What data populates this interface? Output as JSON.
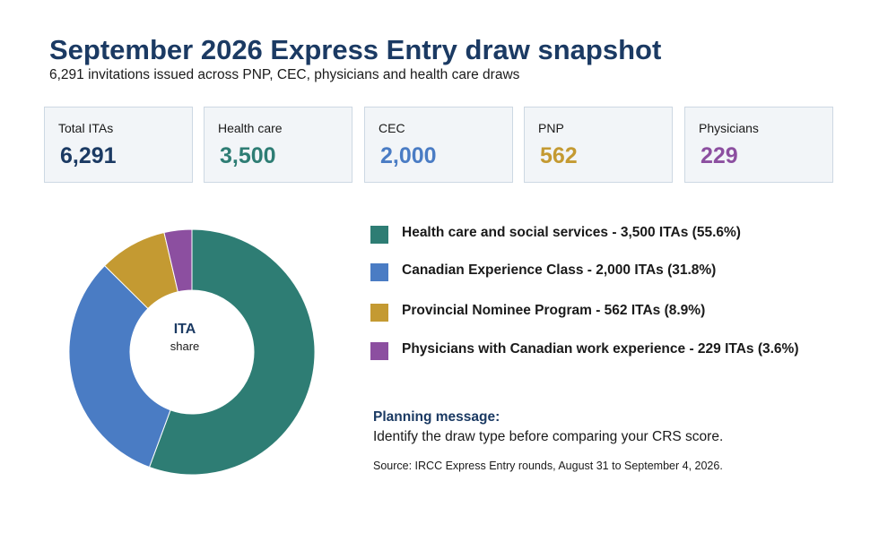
{
  "title": "September 2026 Express Entry draw snapshot",
  "subtitle": "6,291 invitations issued across PNP, CEC, physicians and health care draws",
  "cards": [
    {
      "label": "Total ITAs",
      "value": "6,291",
      "color": "#1b3a63"
    },
    {
      "label": "Health care",
      "value": "3,500",
      "color": "#2e7d74"
    },
    {
      "label": "CEC",
      "value": "2,000",
      "color": "#4a7cc4"
    },
    {
      "label": "PNP",
      "value": "562",
      "color": "#c49a32"
    },
    {
      "label": "Physicians",
      "value": "229",
      "color": "#8c4fa0"
    }
  ],
  "chart_data": {
    "type": "pie",
    "hole": true,
    "center_title": "ITA",
    "center_subtitle": "share",
    "legend_position": "right",
    "slices": [
      {
        "label": "Health care and social services - 3,500 ITAs (55.6%)",
        "value": 3500,
        "color": "#2e7d74"
      },
      {
        "label": "Canadian Experience Class - 2,000 ITAs (31.8%)",
        "value": 2000,
        "color": "#4a7cc4"
      },
      {
        "label": "Provincial Nominee Program - 562 ITAs (8.9%)",
        "value": 562,
        "color": "#c49a32"
      },
      {
        "label": "Physicians with Canadian work experience - 229 ITAs (3.6%)",
        "value": 229,
        "color": "#8c4fa0"
      }
    ]
  },
  "note": {
    "heading": "Planning message:",
    "body": "Identify the draw type before comparing your CRS score."
  },
  "source": "Source: IRCC Express Entry rounds, August 31 to September 4, 2026."
}
